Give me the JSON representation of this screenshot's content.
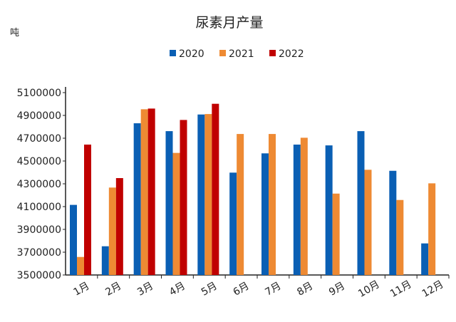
{
  "chart_data": {
    "type": "bar",
    "title": "尿素月产量",
    "ylabel": "吨",
    "xlabel": "",
    "ylim": [
      3500000,
      5100000
    ],
    "yticks": [
      3500000,
      3700000,
      3900000,
      4100000,
      4300000,
      4500000,
      4700000,
      4900000,
      5100000
    ],
    "grid": false,
    "legend_position": "top",
    "categories": [
      "1月",
      "2月",
      "3月",
      "4月",
      "5月",
      "6月",
      "7月",
      "8月",
      "9月",
      "10月",
      "11月",
      "12月"
    ],
    "series": [
      {
        "name": "2020",
        "color": "#0a5fb4",
        "values": [
          4115000,
          3752000,
          4831000,
          4762000,
          4908000,
          4398000,
          4567000,
          4644000,
          4637000,
          4762000,
          4414000,
          3777000
        ]
      },
      {
        "name": "2021",
        "color": "#ee8a33",
        "values": [
          3658000,
          4267000,
          4954000,
          4571000,
          4912000,
          4737000,
          4737000,
          4704000,
          4214000,
          4423000,
          4158000,
          4304000
        ]
      },
      {
        "name": "2022",
        "color": "#c00000",
        "values": [
          4644000,
          4350000,
          4960000,
          4860000,
          5002000,
          null,
          null,
          null,
          null,
          null,
          null,
          null
        ]
      }
    ]
  }
}
